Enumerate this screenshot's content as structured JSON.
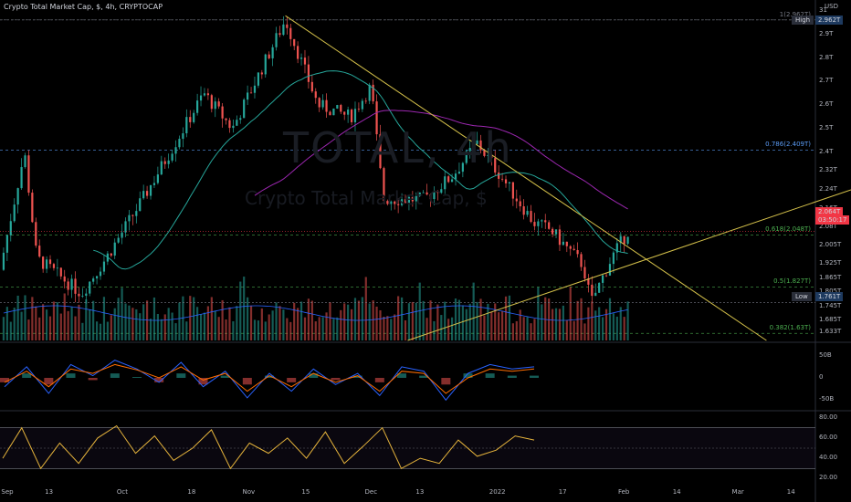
{
  "header": {
    "title": "Crypto Total Market Cap, $, 4h, CRYPTOCAP"
  },
  "watermark": {
    "symbol": "TOTAL, 4h",
    "name": "Crypto Total Market Cap, $"
  },
  "price_axis": {
    "unit": "USD",
    "ticks": [
      "31",
      "2.9T",
      "2.8T",
      "2.7T",
      "2.6T",
      "2.5T",
      "2.4T",
      "2.32T",
      "2.24T",
      "2.16T",
      "2.08T",
      "2.005T",
      "1.925T",
      "1.865T",
      "1.805T",
      "1.745T",
      "1.685T",
      "1.633T"
    ]
  },
  "macd_axis": {
    "ticks": [
      "50B",
      "0",
      "-50B"
    ]
  },
  "rsi_axis": {
    "ticks": [
      "80.00",
      "60.00",
      "40.00",
      "20.00"
    ]
  },
  "time_axis": {
    "ticks": [
      "Sep",
      "13",
      "Oct",
      "18",
      "Nov",
      "15",
      "Dec",
      "13",
      "2022",
      "17",
      "Feb",
      "14",
      "Mar",
      "14"
    ]
  },
  "markers": {
    "high_label": "High",
    "high_value": "2.962T",
    "low_label": "Low",
    "low_value": "1.761T",
    "last_price": "2.064T",
    "countdown": "03:50:17"
  },
  "fib_levels": [
    {
      "label": "1(2.962T)",
      "value": 2.962
    },
    {
      "label": "0.786(2.409T)",
      "value": 2.409
    },
    {
      "label": "0.618(2.048T)",
      "value": 2.048
    },
    {
      "label": "0.5(1.827T)",
      "value": 1.827
    },
    {
      "label": "0.382(1.63T)",
      "value": 1.63
    }
  ],
  "colors": {
    "up": "#26a69a",
    "down": "#ef5350",
    "trendline": "#d4c04a",
    "ma_fast": "#26a69a",
    "ma_slow": "#9c27b0",
    "rsi": "#e6b43c",
    "price_tag": "#f23645"
  },
  "chart_data": [
    {
      "type": "candlestick",
      "title": "Crypto Total Market Cap, $, 4h, CRYPTOCAP",
      "ylabel": "USD",
      "ylim": [
        1.6,
        3.0
      ],
      "x_range": [
        "2021-09-01",
        "2022-03-20"
      ],
      "swing_points": [
        {
          "date": "2021-09-01",
          "value": 1.9
        },
        {
          "date": "2021-09-07",
          "value": 2.4
        },
        {
          "date": "2021-09-10",
          "value": 1.95
        },
        {
          "date": "2021-09-21",
          "value": 1.8
        },
        {
          "date": "2021-09-27",
          "value": 1.95
        },
        {
          "date": "2021-10-06",
          "value": 2.2
        },
        {
          "date": "2021-10-21",
          "value": 2.65
        },
        {
          "date": "2021-10-28",
          "value": 2.5
        },
        {
          "date": "2021-11-10",
          "value": 2.962
        },
        {
          "date": "2021-11-18",
          "value": 2.6
        },
        {
          "date": "2021-11-26",
          "value": 2.55
        },
        {
          "date": "2021-12-01",
          "value": 2.68
        },
        {
          "date": "2021-12-04",
          "value": 2.2
        },
        {
          "date": "2021-12-14",
          "value": 2.2
        },
        {
          "date": "2021-12-21",
          "value": 2.3
        },
        {
          "date": "2021-12-27",
          "value": 2.44
        },
        {
          "date": "2022-01-10",
          "value": 2.1
        },
        {
          "date": "2022-01-14",
          "value": 2.07
        },
        {
          "date": "2022-01-22",
          "value": 1.92
        },
        {
          "date": "2022-01-24",
          "value": 1.761
        },
        {
          "date": "2022-01-29",
          "value": 1.95
        },
        {
          "date": "2022-02-02",
          "value": 2.064
        }
      ],
      "high": 2.962,
      "low": 1.761,
      "last": 2.064
    },
    {
      "type": "line",
      "title": "MACD",
      "ylim": [
        -70,
        70
      ],
      "macd": [
        -20,
        25,
        -35,
        30,
        5,
        40,
        20,
        -10,
        35,
        -20,
        15,
        -45,
        10,
        -30,
        20,
        -15,
        10,
        -40,
        25,
        15,
        -50,
        10,
        30,
        20,
        25
      ],
      "signal": [
        -10,
        15,
        -20,
        20,
        10,
        30,
        18,
        0,
        25,
        -5,
        10,
        -30,
        5,
        -20,
        10,
        -10,
        5,
        -30,
        15,
        10,
        -35,
        0,
        20,
        15,
        20
      ]
    },
    {
      "type": "line",
      "title": "RSI",
      "ylim": [
        15,
        85
      ],
      "bands": [
        30,
        70
      ],
      "values": [
        40,
        70,
        30,
        55,
        35,
        60,
        72,
        45,
        62,
        38,
        50,
        68,
        30,
        55,
        45,
        60,
        40,
        66,
        35,
        52,
        70,
        30,
        40,
        35,
        58,
        42,
        48,
        62,
        58
      ]
    }
  ]
}
